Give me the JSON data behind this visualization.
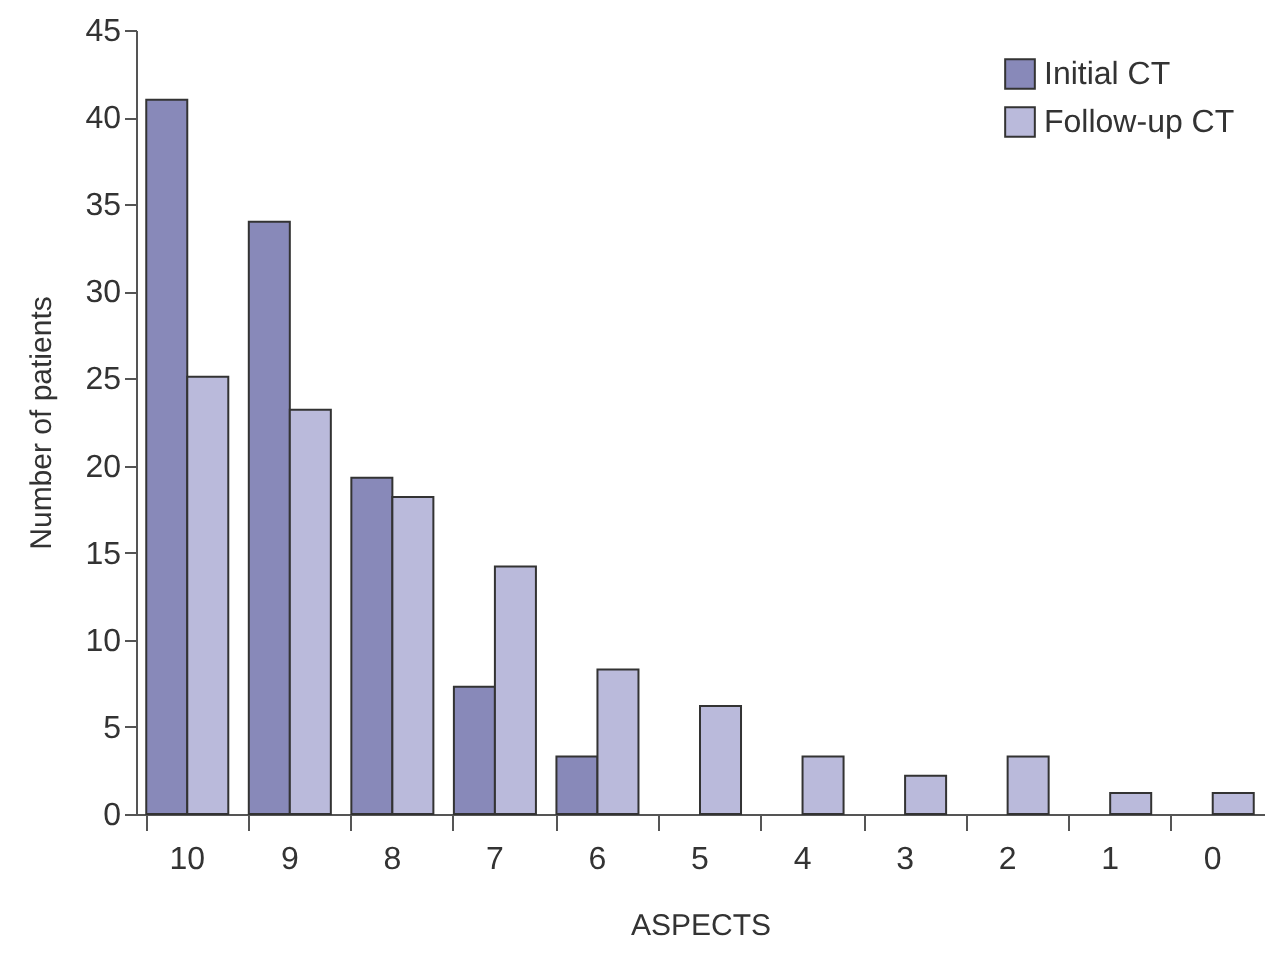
{
  "chart_data": {
    "type": "bar",
    "xlabel": "ASPECTS",
    "ylabel": "Number of patients",
    "categories": [
      "10",
      "9",
      "8",
      "7",
      "6",
      "5",
      "4",
      "3",
      "2",
      "1",
      "0"
    ],
    "series": [
      {
        "name": "Initial CT",
        "color": "#8889b9",
        "values": [
          41,
          34,
          19.3,
          7.3,
          3.3,
          null,
          null,
          null,
          null,
          null,
          null
        ]
      },
      {
        "name": "Follow-up CT",
        "color": "#babadb",
        "values": [
          25.1,
          23.2,
          18.2,
          14.2,
          8.3,
          6.2,
          3.3,
          2.2,
          3.3,
          1.2,
          1.2
        ]
      }
    ],
    "ylim": [
      0,
      45
    ],
    "yticks": [
      0,
      5,
      10,
      15,
      20,
      25,
      30,
      35,
      40,
      45
    ],
    "grid": false,
    "legend": "top right"
  }
}
